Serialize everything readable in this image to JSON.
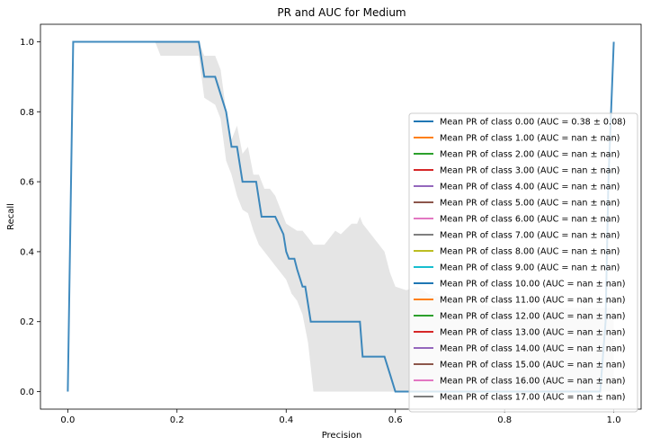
{
  "chart_data": {
    "type": "line",
    "title": "PR and AUC for Medium",
    "xlabel": "Precision",
    "ylabel": "Recall",
    "xlim": [
      -0.05,
      1.05
    ],
    "ylim": [
      -0.05,
      1.05
    ],
    "xticks": [
      0.0,
      0.2,
      0.4,
      0.6,
      0.8,
      1.0
    ],
    "xtick_labels": [
      "0.0",
      "0.2",
      "0.4",
      "0.6",
      "0.8",
      "1.0"
    ],
    "yticks": [
      0.0,
      0.2,
      0.4,
      0.6,
      0.8,
      1.0
    ],
    "ytick_labels": [
      "0.0",
      "0.2",
      "0.4",
      "0.6",
      "0.8",
      "1.0"
    ],
    "grid": false,
    "legend_position": "lower-right",
    "series": [
      {
        "name": "Mean PR of class 0.00 (AUC = 0.38 ± 0.08)",
        "color": "#1f77b4",
        "x": [
          0.0,
          0.01,
          0.24,
          0.25,
          0.27,
          0.29,
          0.3,
          0.31,
          0.32,
          0.345,
          0.355,
          0.36,
          0.38,
          0.395,
          0.4,
          0.405,
          0.415,
          0.42,
          0.43,
          0.435,
          0.44,
          0.445,
          0.46,
          0.535,
          0.54,
          0.575,
          0.58,
          0.59,
          0.6,
          0.975,
          0.985,
          0.99,
          1.0
        ],
        "y": [
          0.0,
          1.0,
          1.0,
          0.9,
          0.9,
          0.8,
          0.7,
          0.7,
          0.6,
          0.6,
          0.5,
          0.5,
          0.5,
          0.45,
          0.4,
          0.38,
          0.38,
          0.35,
          0.3,
          0.3,
          0.25,
          0.2,
          0.2,
          0.2,
          0.1,
          0.1,
          0.1,
          0.05,
          0.0,
          0.0,
          0.2,
          0.6,
          1.0
        ]
      },
      {
        "name": "Mean PR of class 1.00 (AUC = nan ± nan)",
        "color": "#ff7f0e",
        "x": [],
        "y": []
      },
      {
        "name": "Mean PR of class 2.00 (AUC = nan ± nan)",
        "color": "#2ca02c",
        "x": [],
        "y": []
      },
      {
        "name": "Mean PR of class 3.00 (AUC = nan ± nan)",
        "color": "#d62728",
        "x": [],
        "y": []
      },
      {
        "name": "Mean PR of class 4.00 (AUC = nan ± nan)",
        "color": "#9467bd",
        "x": [],
        "y": []
      },
      {
        "name": "Mean PR of class 5.00 (AUC = nan ± nan)",
        "color": "#8c564b",
        "x": [],
        "y": []
      },
      {
        "name": "Mean PR of class 6.00 (AUC = nan ± nan)",
        "color": "#e377c2",
        "x": [],
        "y": []
      },
      {
        "name": "Mean PR of class 7.00 (AUC = nan ± nan)",
        "color": "#7f7f7f",
        "x": [],
        "y": []
      },
      {
        "name": "Mean PR of class 8.00 (AUC = nan ± nan)",
        "color": "#bcbd22",
        "x": [],
        "y": []
      },
      {
        "name": "Mean PR of class 9.00 (AUC = nan ± nan)",
        "color": "#17becf",
        "x": [],
        "y": []
      },
      {
        "name": "Mean PR of class 10.00 (AUC = nan ± nan)",
        "color": "#1f77b4",
        "x": [],
        "y": []
      },
      {
        "name": "Mean PR of class 11.00 (AUC = nan ± nan)",
        "color": "#ff7f0e",
        "x": [],
        "y": []
      },
      {
        "name": "Mean PR of class 12.00 (AUC = nan ± nan)",
        "color": "#2ca02c",
        "x": [],
        "y": []
      },
      {
        "name": "Mean PR of class 13.00 (AUC = nan ± nan)",
        "color": "#d62728",
        "x": [],
        "y": []
      },
      {
        "name": "Mean PR of class 14.00 (AUC = nan ± nan)",
        "color": "#9467bd",
        "x": [],
        "y": []
      },
      {
        "name": "Mean PR of class 15.00 (AUC = nan ± nan)",
        "color": "#8c564b",
        "x": [],
        "y": []
      },
      {
        "name": "Mean PR of class 16.00 (AUC = nan ± nan)",
        "color": "#e377c2",
        "x": [],
        "y": []
      },
      {
        "name": "Mean PR of class 17.00 (AUC = nan ± nan)",
        "color": "#7f7f7f",
        "x": [],
        "y": []
      }
    ],
    "band": {
      "color": "#cccccc",
      "x": [
        0.0,
        0.01,
        0.16,
        0.17,
        0.24,
        0.25,
        0.27,
        0.28,
        0.29,
        0.3,
        0.31,
        0.32,
        0.33,
        0.34,
        0.35,
        0.36,
        0.37,
        0.38,
        0.39,
        0.4,
        0.41,
        0.42,
        0.43,
        0.44,
        0.45,
        0.47,
        0.49,
        0.5,
        0.52,
        0.53,
        0.535,
        0.54,
        0.56,
        0.58,
        0.59,
        0.6,
        0.62,
        0.64,
        0.66,
        0.7,
        0.8,
        0.9,
        1.0
      ],
      "upper": [
        0.0,
        1.0,
        1.0,
        1.0,
        1.0,
        0.96,
        0.96,
        0.92,
        0.8,
        0.72,
        0.76,
        0.68,
        0.7,
        0.62,
        0.62,
        0.58,
        0.58,
        0.56,
        0.52,
        0.48,
        0.47,
        0.46,
        0.46,
        0.44,
        0.42,
        0.42,
        0.46,
        0.45,
        0.48,
        0.48,
        0.5,
        0.48,
        0.44,
        0.4,
        0.34,
        0.3,
        0.29,
        0.3,
        0.28,
        0.26,
        0.24,
        0.24,
        0.24
      ],
      "lower": [
        0.0,
        1.0,
        1.0,
        0.96,
        0.96,
        0.84,
        0.82,
        0.78,
        0.66,
        0.62,
        0.56,
        0.52,
        0.51,
        0.46,
        0.42,
        0.4,
        0.38,
        0.36,
        0.34,
        0.32,
        0.28,
        0.26,
        0.22,
        0.14,
        0.0,
        0.0,
        0.0,
        0.0,
        0.0,
        0.0,
        0.0,
        0.0,
        0.0,
        0.0,
        0.0,
        0.0,
        0.0,
        0.0,
        0.0,
        0.0,
        0.0,
        0.0,
        0.0
      ]
    }
  }
}
